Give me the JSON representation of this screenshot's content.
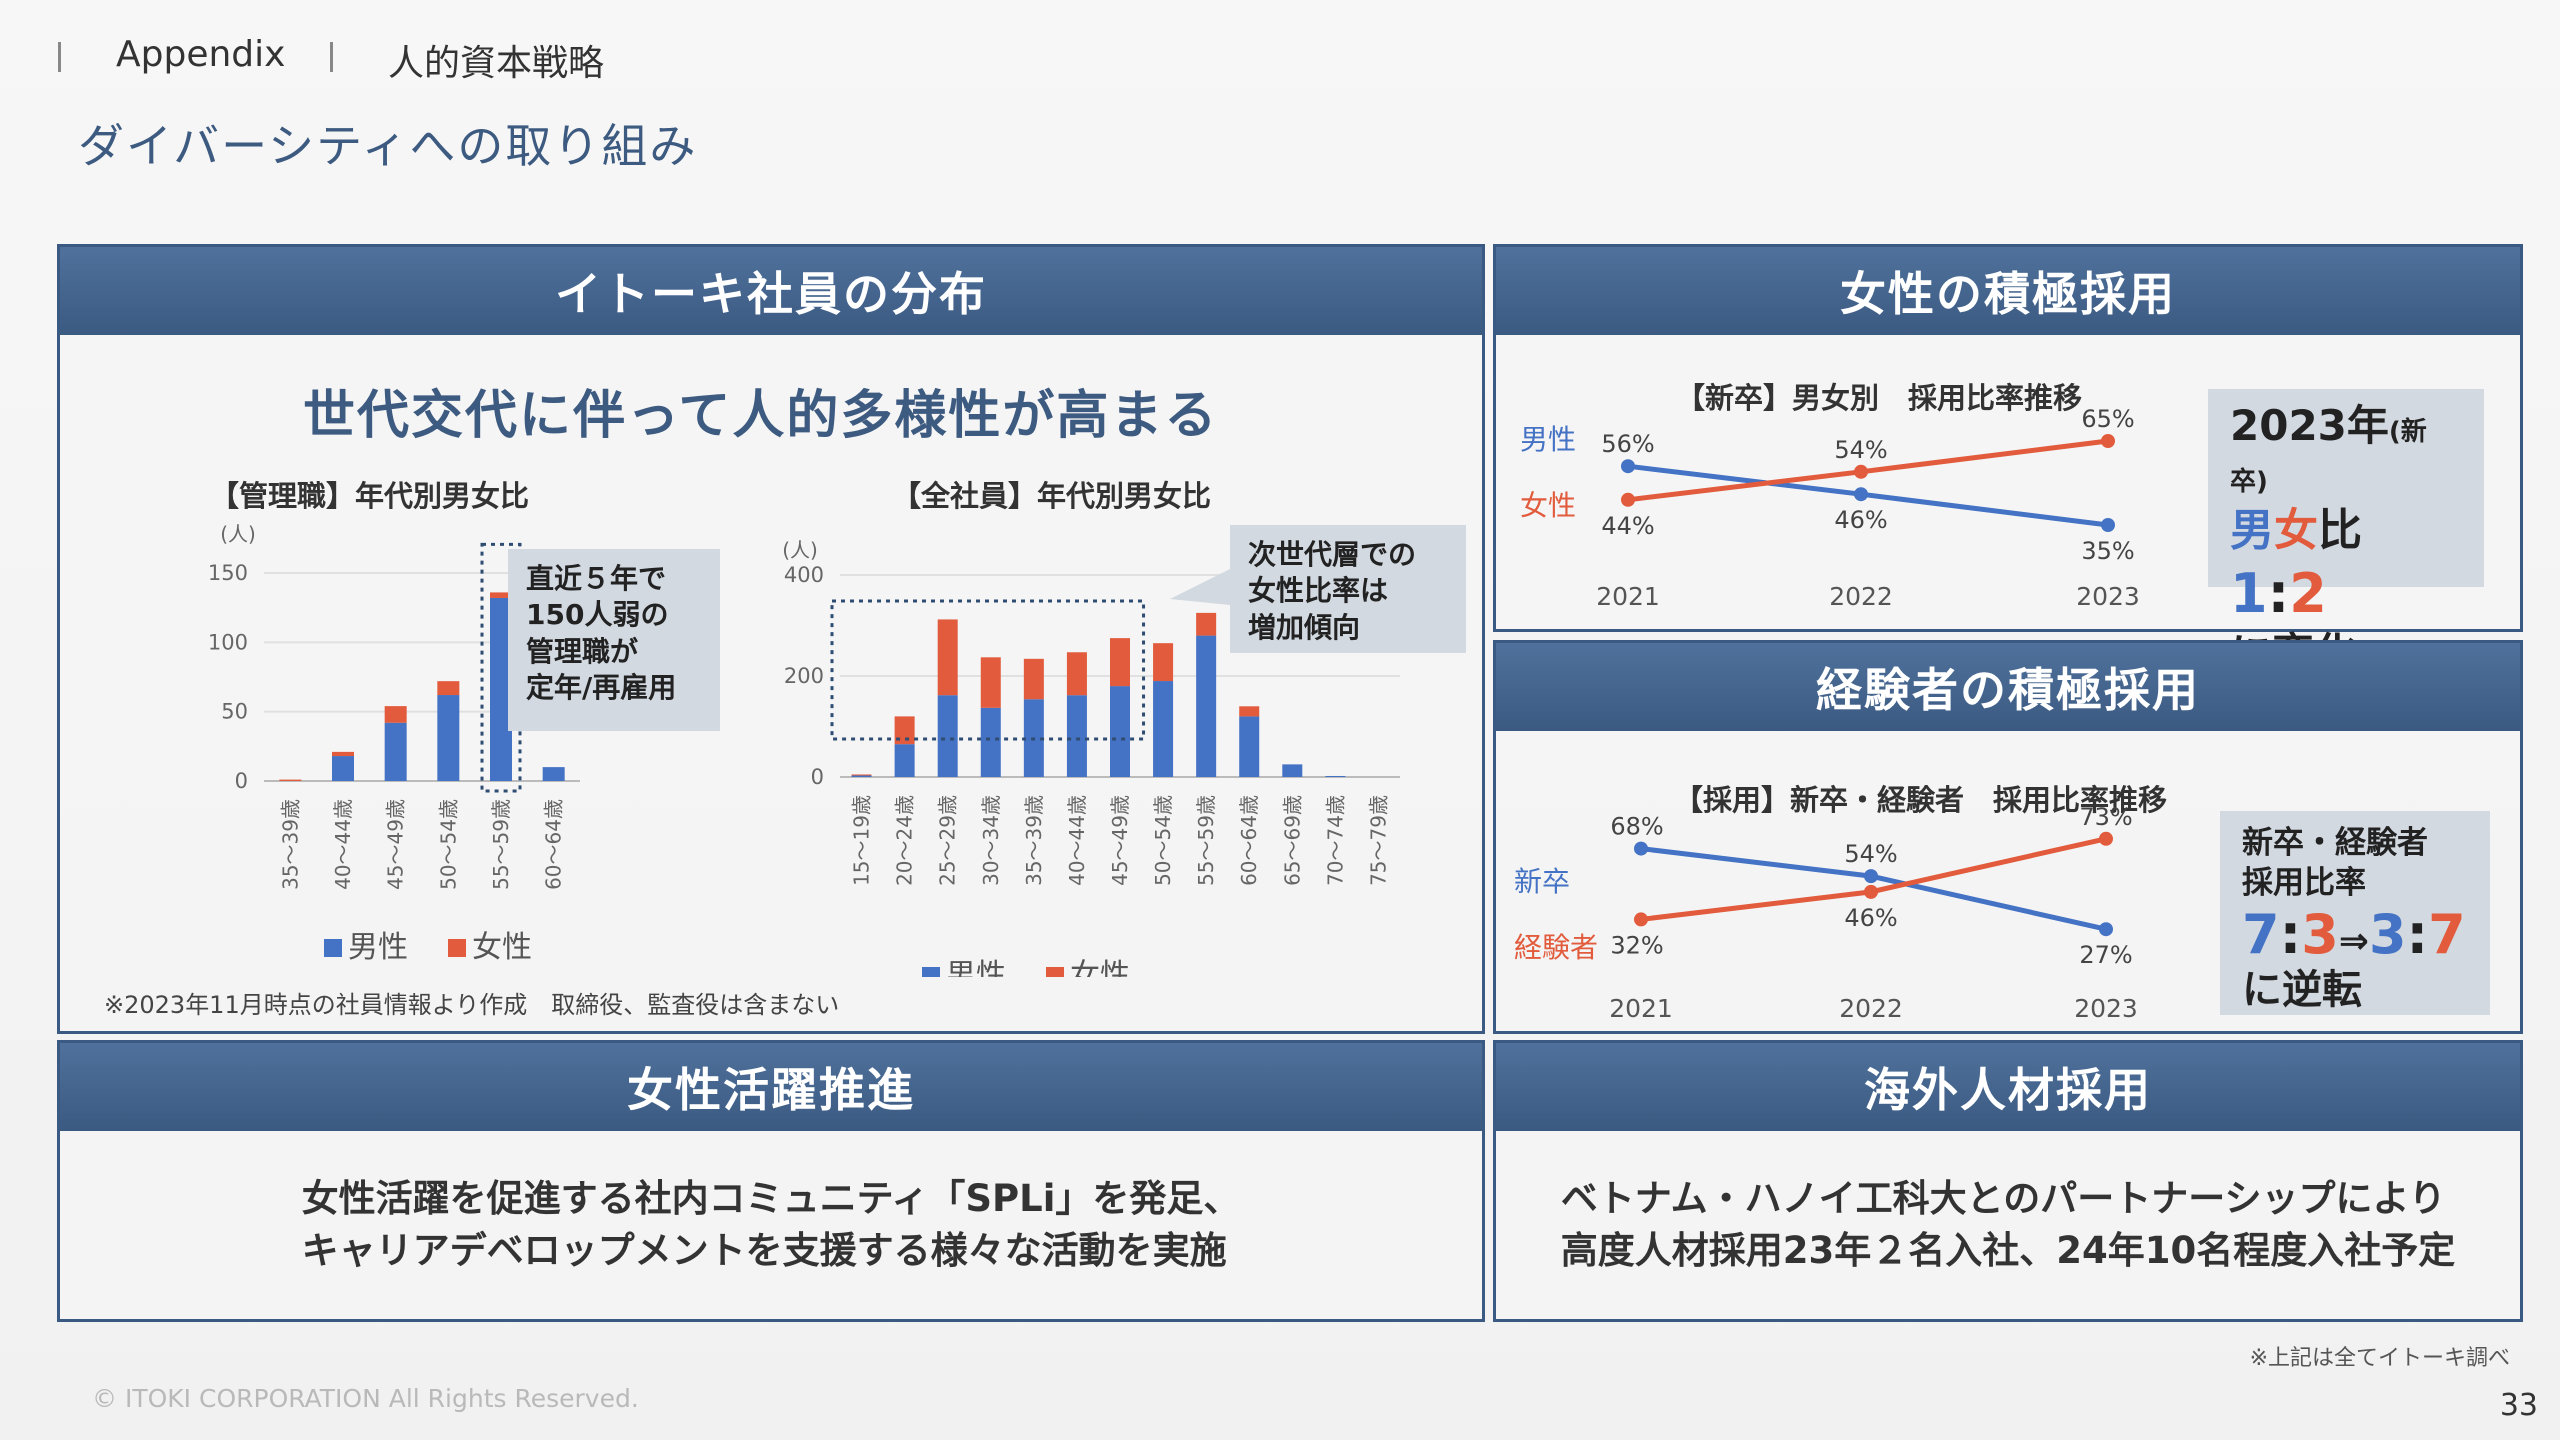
{
  "header": {
    "breadcrumb_1": "Appendix",
    "breadcrumb_2": "人的資本戦略",
    "title": "ダイバーシティへの取り組み"
  },
  "panel_distribution": {
    "heading": "イトーキ社員の分布",
    "subheading": "世代交代に伴って人的多様性が高まる",
    "callout_managers": "直近５年で\n150人弱の\n管理職が\n定年/再雇用",
    "callout_all": "次世代層での\n女性比率は\n増加傾向",
    "footnote": "※2023年11月時点の社員情報より作成　取締役、監査役は含まない"
  },
  "panel_female_hiring": {
    "heading": "女性の積極採用",
    "summary_year": "2023年",
    "summary_year_note": "(新卒)",
    "summary_male": "男",
    "summary_female": "女",
    "summary_ratio_word": "比",
    "summary_ratio_a": "1",
    "summary_colon": ":",
    "summary_ratio_b": "2",
    "summary_change": "に変化"
  },
  "panel_experienced_hiring": {
    "heading": "経験者の積極採用",
    "summary_line1": "新卒・経験者",
    "summary_line2": "採用比率",
    "summary_a": "7",
    "summary_b": "3",
    "summary_c": "3",
    "summary_d": "7",
    "summary_colon": ":",
    "summary_arrow": "⇒",
    "summary_reverse": "に逆転"
  },
  "panel_women_active": {
    "heading": "女性活躍推進",
    "body": "女性活躍を促進する社内コミュニティ「SPLi」を発足、\nキャリアデベロップメントを支援する様々な活動を実施"
  },
  "panel_global_hiring": {
    "heading": "海外人材採用",
    "body": "ベトナム・ハノイ工科大とのパートナーシップにより\n高度人材採用23年２名入社、24年10名程度入社予定"
  },
  "footer": {
    "source_note": "※上記は全てイトーキ調べ",
    "copyright": "© ITOKI CORPORATION All Rights Reserved.",
    "page_number": "33"
  },
  "colors": {
    "male": "#4472c4",
    "female": "#e15b3c",
    "accent": "#3d5a80"
  },
  "chart_data": [
    {
      "type": "bar",
      "stacked": true,
      "title": "【管理職】年代別男女比",
      "ylabel": "(人)",
      "ylim": [
        0,
        150
      ],
      "yticks": [
        0,
        50,
        100,
        150
      ],
      "categories": [
        "35～39歳",
        "40～44歳",
        "45～49歳",
        "50～54歳",
        "55～59歳",
        "60～64歳"
      ],
      "series": [
        {
          "name": "男性",
          "values": [
            0,
            18,
            42,
            62,
            132,
            10
          ]
        },
        {
          "name": "女性",
          "values": [
            1,
            3,
            12,
            10,
            4,
            0
          ]
        }
      ],
      "highlight_category": "55～59歳",
      "legend": "bottom"
    },
    {
      "type": "bar",
      "stacked": true,
      "title": "【全社員】年代別男女比",
      "ylabel": "(人)",
      "ylim": [
        0,
        400
      ],
      "yticks": [
        0,
        200,
        400
      ],
      "categories": [
        "15～19歳",
        "20～24歳",
        "25～29歳",
        "30～34歳",
        "35～39歳",
        "40～44歳",
        "45～49歳",
        "50～54歳",
        "55～59歳",
        "60～64歳",
        "65～69歳",
        "70～74歳",
        "75～79歳"
      ],
      "series": [
        {
          "name": "男性",
          "values": [
            3,
            65,
            162,
            137,
            154,
            162,
            180,
            190,
            280,
            120,
            25,
            2,
            0
          ]
        },
        {
          "name": "女性",
          "values": [
            2,
            55,
            150,
            100,
            80,
            85,
            95,
            75,
            45,
            20,
            0,
            0,
            0
          ]
        }
      ],
      "highlight_range": [
        "15～19歳",
        "45～49歳"
      ],
      "legend": "bottom"
    },
    {
      "type": "line",
      "title": "【新卒】男女別　採用比率推移",
      "x": [
        "2021",
        "2022",
        "2023"
      ],
      "series": [
        {
          "name": "男性",
          "values": [
            56,
            46,
            35
          ],
          "unit": "%"
        },
        {
          "name": "女性",
          "values": [
            44,
            54,
            65
          ],
          "unit": "%"
        }
      ]
    },
    {
      "type": "line",
      "title": "【採用】新卒・経験者　採用比率推移",
      "x": [
        "2021",
        "2022",
        "2023"
      ],
      "series": [
        {
          "name": "新卒",
          "values": [
            68,
            54,
            27
          ],
          "unit": "%"
        },
        {
          "name": "経験者",
          "values": [
            32,
            46,
            73
          ],
          "unit": "%"
        }
      ]
    }
  ]
}
